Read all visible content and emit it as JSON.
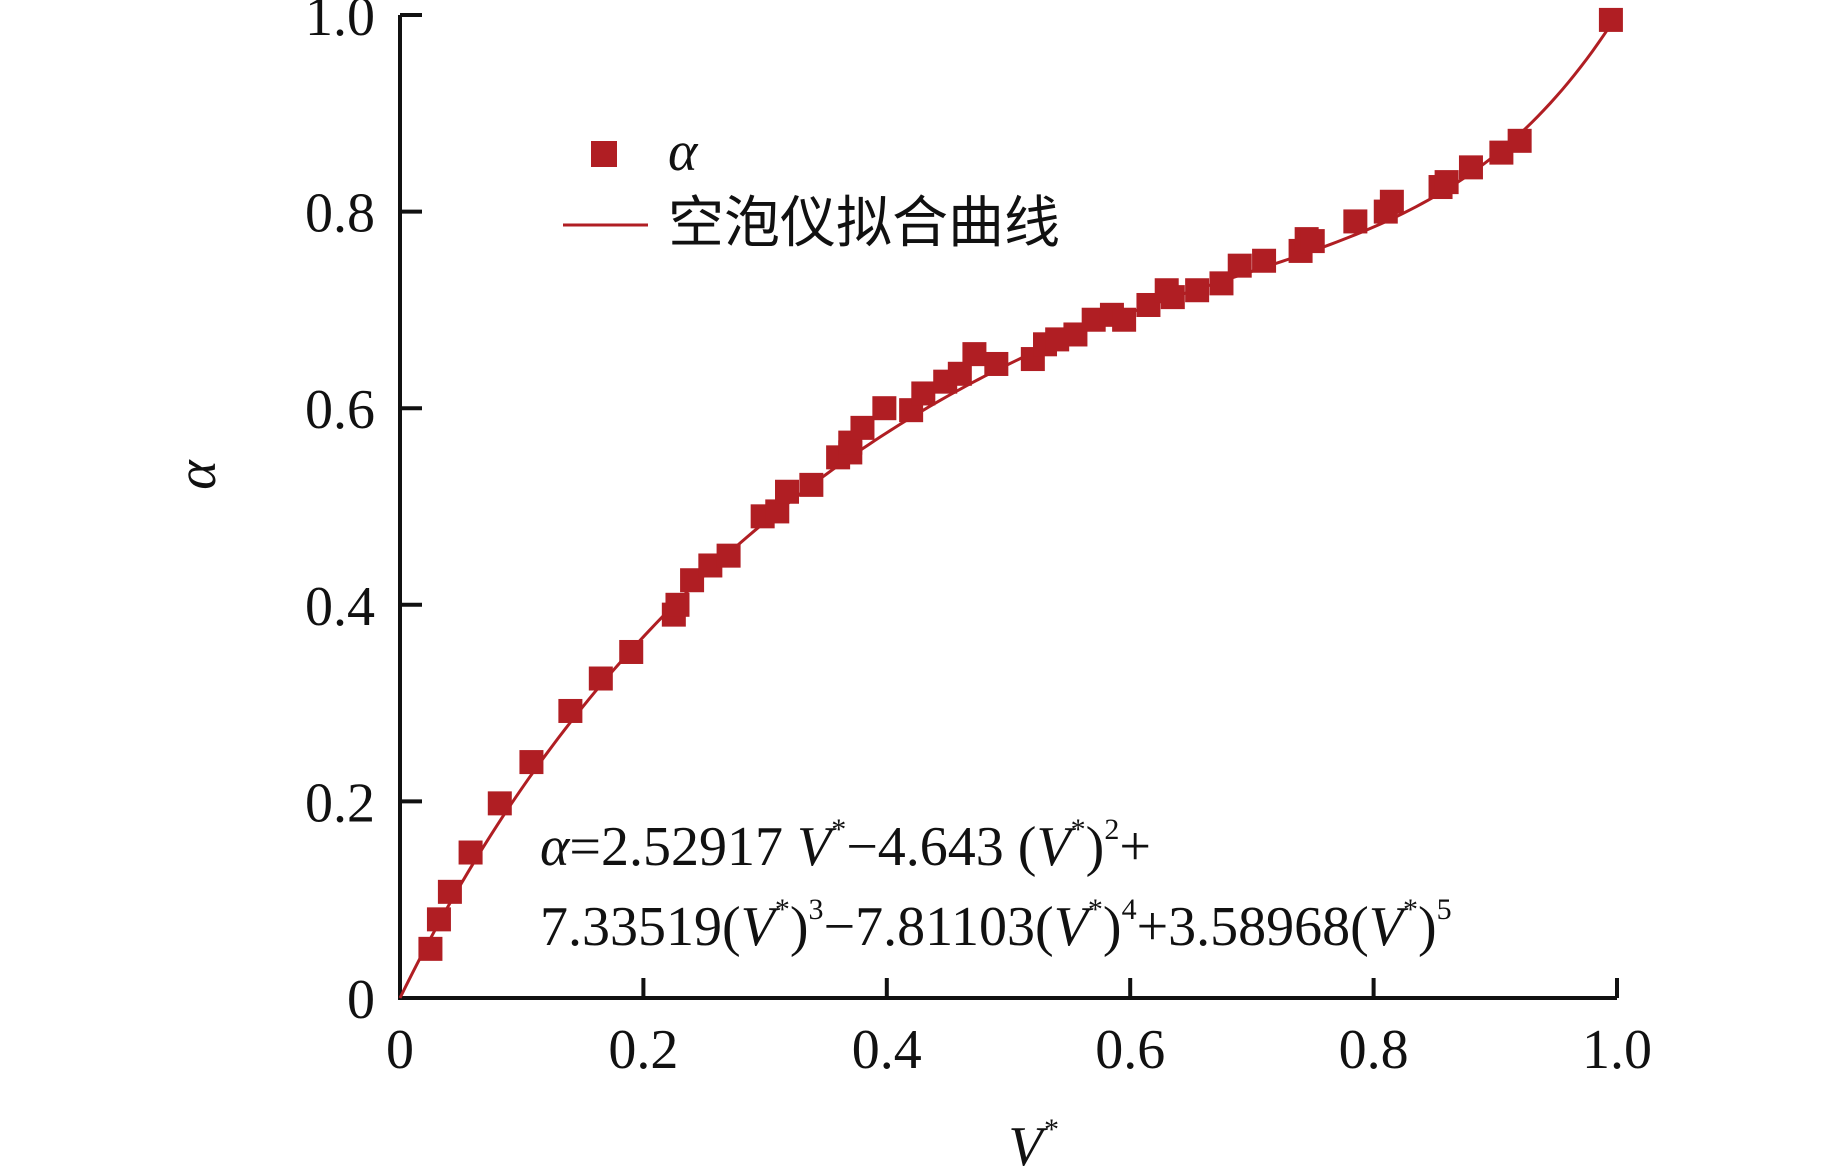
{
  "colors": {
    "series": "#b01e23",
    "axis": "#111111"
  },
  "chart_data": {
    "type": "scatter",
    "xlabel": "V",
    "xlabel_sup": "*",
    "ylabel": "α",
    "xlim": [
      0,
      1.0
    ],
    "ylim": [
      0,
      1.0
    ],
    "x_ticks": [
      "0",
      "0.2",
      "0.4",
      "0.6",
      "0.8",
      "1.0"
    ],
    "y_ticks": [
      "0",
      "0.2",
      "0.4",
      "0.6",
      "0.8",
      "1.0"
    ],
    "grid": false,
    "legend_position": "top-left",
    "legend": {
      "points": "α",
      "line": "空泡仪拟合曲线"
    },
    "equation": {
      "line1": {
        "a": "α",
        "b": "=2.52917 ",
        "c": "V",
        "d": "*",
        "e": "−4.643 (",
        "f": "V",
        "g": "*",
        "h": ")",
        "i": "2",
        "j": "+"
      },
      "line2": {
        "a": "7.33519(",
        "b": "V",
        "c": "*",
        "d": ")",
        "e": "3",
        "f": "−7.81103(",
        "g": "V",
        "h": "*",
        "i": ")",
        "j": "4",
        "k": "+3.58968(",
        "l": "V",
        "m": "*",
        "n": ")",
        "o": "5"
      }
    },
    "fit_coefficients": [
      2.52917,
      -4.643,
      7.33519,
      -7.81103,
      3.58968
    ],
    "points": [
      [
        0.025,
        0.05
      ],
      [
        0.032,
        0.08
      ],
      [
        0.041,
        0.108
      ],
      [
        0.058,
        0.148
      ],
      [
        0.082,
        0.198
      ],
      [
        0.108,
        0.24
      ],
      [
        0.14,
        0.292
      ],
      [
        0.165,
        0.325
      ],
      [
        0.19,
        0.352
      ],
      [
        0.225,
        0.39
      ],
      [
        0.228,
        0.4
      ],
      [
        0.24,
        0.425
      ],
      [
        0.255,
        0.44
      ],
      [
        0.27,
        0.45
      ],
      [
        0.298,
        0.49
      ],
      [
        0.31,
        0.495
      ],
      [
        0.318,
        0.515
      ],
      [
        0.338,
        0.522
      ],
      [
        0.36,
        0.55
      ],
      [
        0.37,
        0.555
      ],
      [
        0.37,
        0.565
      ],
      [
        0.38,
        0.58
      ],
      [
        0.398,
        0.6
      ],
      [
        0.42,
        0.598
      ],
      [
        0.43,
        0.615
      ],
      [
        0.448,
        0.627
      ],
      [
        0.46,
        0.635
      ],
      [
        0.472,
        0.655
      ],
      [
        0.49,
        0.645
      ],
      [
        0.52,
        0.65
      ],
      [
        0.53,
        0.665
      ],
      [
        0.54,
        0.67
      ],
      [
        0.555,
        0.675
      ],
      [
        0.57,
        0.69
      ],
      [
        0.585,
        0.695
      ],
      [
        0.595,
        0.69
      ],
      [
        0.615,
        0.705
      ],
      [
        0.63,
        0.72
      ],
      [
        0.635,
        0.713
      ],
      [
        0.655,
        0.72
      ],
      [
        0.675,
        0.727
      ],
      [
        0.69,
        0.745
      ],
      [
        0.71,
        0.75
      ],
      [
        0.74,
        0.76
      ],
      [
        0.745,
        0.772
      ],
      [
        0.75,
        0.77
      ],
      [
        0.785,
        0.79
      ],
      [
        0.81,
        0.8
      ],
      [
        0.815,
        0.81
      ],
      [
        0.855,
        0.825
      ],
      [
        0.86,
        0.83
      ],
      [
        0.88,
        0.845
      ],
      [
        0.905,
        0.86
      ],
      [
        0.92,
        0.872
      ],
      [
        0.995,
        0.995
      ]
    ]
  }
}
